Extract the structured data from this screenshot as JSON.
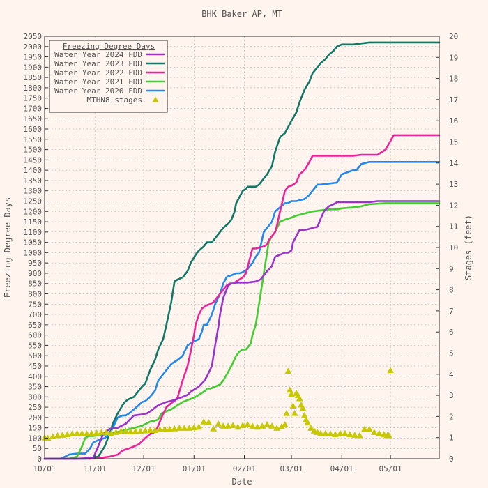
{
  "chart_data": {
    "type": "line",
    "title": "BHK Baker AP, MT",
    "xlabel": "Date",
    "ylabel": "Freezing Degree Days",
    "y2label": "Stages (feet)",
    "x_unit": "day of water year (Oct 1 = 0)",
    "xlim": [
      0,
      243
    ],
    "ylim": [
      0,
      2050
    ],
    "y2lim": [
      0,
      20
    ],
    "x_ticks": [
      {
        "x": 0,
        "label": "10/01"
      },
      {
        "x": 31,
        "label": "11/01"
      },
      {
        "x": 61,
        "label": "12/01"
      },
      {
        "x": 92,
        "label": "01/01"
      },
      {
        "x": 123,
        "label": "02/01"
      },
      {
        "x": 152,
        "label": "03/01"
      },
      {
        "x": 183,
        "label": "04/01"
      },
      {
        "x": 213,
        "label": "05/01"
      }
    ],
    "y_ticks": [
      0,
      50,
      100,
      150,
      200,
      250,
      300,
      350,
      400,
      450,
      500,
      550,
      600,
      650,
      700,
      750,
      800,
      850,
      900,
      950,
      1000,
      1050,
      1100,
      1150,
      1200,
      1250,
      1300,
      1350,
      1400,
      1450,
      1500,
      1550,
      1600,
      1650,
      1700,
      1750,
      1800,
      1850,
      1900,
      1950,
      2000,
      2050
    ],
    "y2_ticks": [
      0,
      1,
      2,
      3,
      4,
      5,
      6,
      7,
      8,
      9,
      10,
      11,
      12,
      13,
      14,
      15,
      16,
      17,
      18,
      19,
      20
    ],
    "grid": true,
    "legend": {
      "title": "Freezing Degree Days",
      "position": "top-left"
    },
    "colors": {
      "wy2024": "#9933cc",
      "wy2023": "#117766",
      "wy2022": "#ee2299",
      "wy2021": "#44cc33",
      "wy2020": "#2288ee",
      "stages": "#c8c800",
      "background": "#fff5ee",
      "grid": "#b8b8b8",
      "text": "#505050"
    },
    "series": [
      {
        "name": "Water Year 2024 FDD",
        "key": "wy2024",
        "axis": "left",
        "x": [
          0,
          20,
          30,
          33,
          36,
          40,
          45,
          50,
          55,
          60,
          63,
          66,
          70,
          75,
          80,
          85,
          88,
          90,
          93,
          95,
          98,
          100,
          103,
          105,
          107,
          108,
          110,
          112,
          113,
          115,
          116,
          118,
          120,
          125,
          130,
          133,
          135,
          137,
          140,
          141,
          142,
          145,
          148,
          150,
          151,
          152,
          153,
          155,
          157,
          160,
          163,
          165,
          168,
          170,
          172,
          175,
          178,
          180,
          190,
          200,
          205,
          210,
          243
        ],
        "y": [
          0,
          0,
          5,
          60,
          120,
          145,
          150,
          170,
          210,
          215,
          220,
          235,
          260,
          275,
          285,
          300,
          310,
          325,
          340,
          350,
          375,
          400,
          450,
          550,
          640,
          700,
          780,
          820,
          840,
          850,
          850,
          855,
          855,
          855,
          860,
          870,
          890,
          910,
          935,
          960,
          980,
          990,
          1000,
          1000,
          1005,
          1010,
          1050,
          1080,
          1110,
          1110,
          1115,
          1120,
          1125,
          1165,
          1200,
          1225,
          1235,
          1245,
          1245,
          1245,
          1250,
          1250,
          1250
        ]
      },
      {
        "name": "Water Year 2023 FDD",
        "key": "wy2023",
        "axis": "left",
        "x": [
          0,
          25,
          33,
          37,
          40,
          42,
          45,
          48,
          50,
          52,
          55,
          58,
          60,
          62,
          65,
          68,
          70,
          73,
          75,
          78,
          80,
          82,
          85,
          88,
          90,
          93,
          95,
          98,
          100,
          103,
          105,
          108,
          110,
          113,
          115,
          117,
          118,
          120,
          122,
          124,
          125,
          127,
          128,
          130,
          132,
          135,
          137,
          140,
          142,
          145,
          148,
          150,
          152,
          155,
          157,
          160,
          163,
          165,
          168,
          170,
          173,
          175,
          178,
          180,
          183,
          185,
          190,
          195,
          200,
          243
        ],
        "y": [
          0,
          0,
          10,
          60,
          120,
          170,
          220,
          260,
          280,
          290,
          300,
          330,
          350,
          365,
          430,
          480,
          530,
          580,
          650,
          760,
          860,
          870,
          880,
          910,
          950,
          990,
          1010,
          1030,
          1050,
          1050,
          1070,
          1100,
          1120,
          1140,
          1160,
          1200,
          1240,
          1270,
          1300,
          1310,
          1320,
          1320,
          1320,
          1320,
          1330,
          1360,
          1380,
          1420,
          1490,
          1560,
          1580,
          1610,
          1640,
          1680,
          1730,
          1790,
          1830,
          1870,
          1900,
          1920,
          1940,
          1960,
          1980,
          2000,
          2010,
          2010,
          2010,
          2015,
          2020,
          2020
        ]
      },
      {
        "name": "Water Year 2022 FDD",
        "key": "wy2022",
        "axis": "left",
        "x": [
          0,
          28,
          35,
          40,
          45,
          48,
          52,
          55,
          58,
          62,
          65,
          68,
          70,
          72,
          75,
          78,
          80,
          82,
          85,
          88,
          90,
          92,
          93,
          95,
          97,
          99,
          100,
          102,
          104,
          106,
          108,
          110,
          112,
          114,
          116,
          118,
          120,
          122,
          124,
          126,
          128,
          130,
          132,
          135,
          137,
          138,
          140,
          142,
          143,
          145,
          148,
          150,
          152,
          155,
          157,
          160,
          163,
          165,
          168,
          170,
          180,
          185,
          190,
          195,
          200,
          205,
          210,
          215,
          220,
          243
        ],
        "y": [
          0,
          0,
          5,
          10,
          20,
          40,
          50,
          60,
          70,
          100,
          120,
          130,
          160,
          200,
          250,
          270,
          280,
          300,
          380,
          450,
          520,
          600,
          650,
          700,
          730,
          740,
          745,
          750,
          760,
          780,
          800,
          820,
          840,
          850,
          850,
          860,
          870,
          880,
          900,
          960,
          1020,
          1020,
          1025,
          1030,
          1040,
          1060,
          1080,
          1100,
          1130,
          1200,
          1300,
          1320,
          1325,
          1340,
          1380,
          1400,
          1440,
          1470,
          1470,
          1470,
          1470,
          1470,
          1470,
          1475,
          1475,
          1475,
          1500,
          1570,
          1570,
          1570
        ]
      },
      {
        "name": "Water Year 2021 FDD",
        "key": "wy2021",
        "axis": "left",
        "x": [
          0,
          15,
          20,
          23,
          25,
          27,
          30,
          35,
          40,
          45,
          50,
          55,
          60,
          65,
          68,
          70,
          72,
          75,
          78,
          80,
          82,
          85,
          88,
          90,
          93,
          95,
          97,
          99,
          100,
          102,
          105,
          108,
          110,
          113,
          115,
          118,
          120,
          122,
          124,
          125,
          127,
          128,
          130,
          132,
          133,
          135,
          137,
          138,
          140,
          142,
          145,
          148,
          150,
          152,
          155,
          160,
          165,
          170,
          175,
          180,
          183,
          190,
          195,
          200,
          210,
          243
        ],
        "y": [
          0,
          0,
          10,
          60,
          100,
          110,
          110,
          115,
          120,
          130,
          140,
          150,
          160,
          180,
          185,
          190,
          220,
          230,
          240,
          250,
          260,
          275,
          285,
          290,
          300,
          310,
          320,
          330,
          340,
          340,
          350,
          360,
          380,
          420,
          450,
          500,
          520,
          530,
          530,
          540,
          560,
          600,
          650,
          750,
          800,
          900,
          1000,
          1050,
          1080,
          1100,
          1150,
          1160,
          1165,
          1170,
          1180,
          1190,
          1200,
          1205,
          1210,
          1210,
          1215,
          1220,
          1225,
          1235,
          1240,
          1240
        ]
      },
      {
        "name": "Water Year 2020 FDD",
        "key": "wy2020",
        "axis": "left",
        "x": [
          0,
          10,
          15,
          20,
          25,
          28,
          30,
          33,
          35,
          37,
          40,
          42,
          45,
          48,
          50,
          52,
          55,
          58,
          60,
          62,
          65,
          68,
          70,
          72,
          75,
          78,
          80,
          82,
          85,
          88,
          90,
          92,
          95,
          97,
          98,
          100,
          103,
          105,
          108,
          110,
          112,
          113,
          115,
          118,
          120,
          122,
          125,
          128,
          130,
          132,
          135,
          138,
          140,
          142,
          145,
          148,
          150,
          152,
          155,
          160,
          163,
          165,
          168,
          170,
          175,
          180,
          183,
          190,
          192,
          195,
          200,
          210,
          220,
          230,
          243
        ],
        "y": [
          0,
          0,
          20,
          25,
          25,
          50,
          80,
          90,
          95,
          100,
          120,
          150,
          200,
          210,
          210,
          220,
          240,
          260,
          275,
          280,
          300,
          330,
          380,
          400,
          430,
          460,
          470,
          480,
          500,
          550,
          560,
          570,
          580,
          620,
          650,
          650,
          700,
          750,
          800,
          850,
          880,
          885,
          890,
          900,
          900,
          905,
          920,
          950,
          980,
          1000,
          1100,
          1130,
          1150,
          1200,
          1220,
          1240,
          1240,
          1250,
          1250,
          1260,
          1280,
          1300,
          1330,
          1330,
          1335,
          1340,
          1380,
          1400,
          1400,
          1430,
          1440,
          1440,
          1440,
          1440,
          1440
        ]
      },
      {
        "name": "MTHN8 stages",
        "key": "stages",
        "axis": "right",
        "marker": "triangle",
        "x": [
          0,
          2,
          5,
          8,
          11,
          14,
          17,
          20,
          23,
          26,
          29,
          32,
          35,
          38,
          41,
          44,
          47,
          50,
          53,
          56,
          59,
          62,
          65,
          68,
          71,
          74,
          77,
          80,
          83,
          86,
          89,
          92,
          95,
          98,
          101,
          104,
          107,
          110,
          113,
          116,
          119,
          122,
          125,
          128,
          131,
          134,
          137,
          140,
          143,
          146,
          148,
          149,
          150,
          151,
          152,
          153,
          154,
          155,
          156,
          157,
          158,
          159,
          160,
          161,
          162,
          164,
          166,
          168,
          170,
          173,
          176,
          179,
          182,
          185,
          188,
          191,
          194,
          197,
          200,
          203,
          206,
          209,
          211,
          212,
          213
        ],
        "y": [
          1.0,
          0.98,
          1.05,
          1.1,
          1.12,
          1.15,
          1.18,
          1.2,
          1.2,
          1.18,
          1.2,
          1.22,
          1.25,
          1.25,
          1.2,
          1.25,
          1.3,
          1.3,
          1.28,
          1.3,
          1.3,
          1.33,
          1.35,
          1.35,
          1.38,
          1.4,
          1.4,
          1.42,
          1.45,
          1.45,
          1.45,
          1.48,
          1.5,
          1.75,
          1.72,
          1.42,
          1.65,
          1.55,
          1.55,
          1.58,
          1.5,
          1.58,
          1.62,
          1.55,
          1.5,
          1.55,
          1.62,
          1.55,
          1.45,
          1.52,
          1.62,
          2.15,
          4.15,
          3.25,
          3.05,
          2.5,
          2.15,
          3.1,
          3.0,
          2.85,
          2.55,
          2.4,
          2.05,
          1.85,
          1.7,
          1.45,
          1.32,
          1.25,
          1.2,
          1.2,
          1.18,
          1.15,
          1.2,
          1.2,
          1.15,
          1.12,
          1.1,
          1.4,
          1.4,
          1.25,
          1.2,
          1.15,
          1.1,
          1.1,
          4.18
        ]
      }
    ]
  }
}
